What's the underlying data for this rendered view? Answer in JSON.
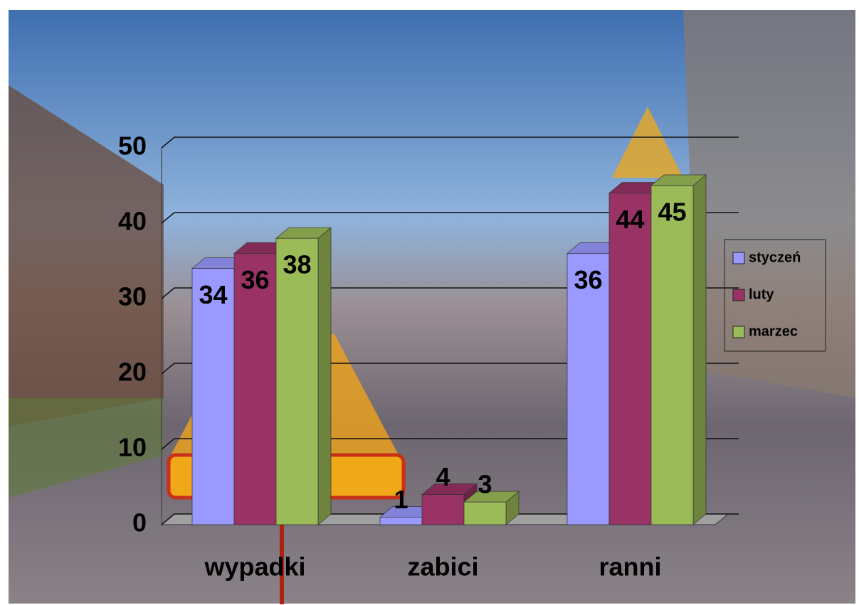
{
  "chart_data": {
    "type": "bar3d",
    "categories": [
      "wypadki",
      "zabici",
      "ranni"
    ],
    "series": [
      {
        "name": "styczeń",
        "color": "#9999ff",
        "values": [
          34,
          1,
          36
        ]
      },
      {
        "name": "luty",
        "color": "#993366",
        "values": [
          36,
          4,
          44
        ]
      },
      {
        "name": "marzec",
        "color": "#9bbb59",
        "values": [
          38,
          3,
          45
        ]
      }
    ],
    "ylim": [
      0,
      50
    ],
    "yticks": [
      0,
      10,
      20,
      30,
      40,
      50
    ],
    "grid": true,
    "legend": "right"
  }
}
